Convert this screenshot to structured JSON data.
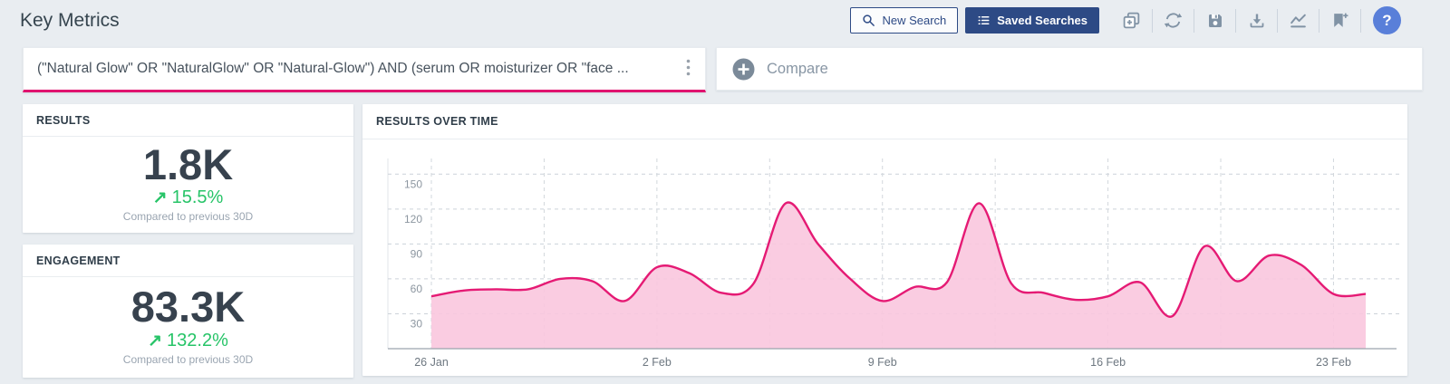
{
  "page": {
    "title": "Key Metrics"
  },
  "toolbar": {
    "new_search": {
      "label": "New Search"
    },
    "saved_searches": {
      "label": "Saved Searches"
    },
    "icon_buttons": [
      "add-to-dashboard",
      "refresh",
      "save",
      "download",
      "trend",
      "bookmark-add"
    ],
    "help": {
      "label": "?"
    }
  },
  "query_bar": {
    "query": "(\"Natural Glow\" OR \"NaturalGlow\" OR \"Natural-Glow\") AND (serum OR moisturizer OR \"face ...",
    "accent_color": "#e0136f"
  },
  "compare": {
    "label": "Compare"
  },
  "metrics": [
    {
      "title": "RESULTS",
      "value": "1.8K",
      "arrow": "↗",
      "change": "15.5%",
      "direction": "up",
      "change_color": "#27c468",
      "subtext": "Compared to previous 30D"
    },
    {
      "title": "ENGAGEMENT",
      "value": "83.3K",
      "arrow": "↗",
      "change": "132.2%",
      "direction": "up",
      "change_color": "#27c468",
      "subtext": "Compared to previous 30D"
    }
  ],
  "chart_data": {
    "type": "area",
    "title": "RESULTS OVER TIME",
    "x": [
      "26 Jan",
      "27 Jan",
      "28 Jan",
      "29 Jan",
      "30 Jan",
      "31 Jan",
      "1 Feb",
      "2 Feb",
      "3 Feb",
      "4 Feb",
      "5 Feb",
      "6 Feb",
      "7 Feb",
      "8 Feb",
      "9 Feb",
      "10 Feb",
      "11 Feb",
      "12 Feb",
      "13 Feb",
      "14 Feb",
      "15 Feb",
      "16 Feb",
      "17 Feb",
      "18 Feb",
      "19 Feb",
      "20 Feb",
      "21 Feb",
      "22 Feb",
      "23 Feb",
      "24 Feb"
    ],
    "values": [
      45,
      50,
      51,
      51,
      60,
      58,
      41,
      70,
      65,
      48,
      56,
      125,
      90,
      60,
      41,
      53,
      57,
      125,
      56,
      48,
      42,
      45,
      57,
      28,
      88,
      58,
      80,
      72,
      47,
      47
    ],
    "xlabel": "",
    "ylabel": "",
    "ylim": [
      0,
      165
    ],
    "y_ticks": [
      30,
      60,
      90,
      120,
      150
    ],
    "x_tick_labels": [
      "26 Jan",
      "2 Feb",
      "9 Feb",
      "16 Feb",
      "23 Feb"
    ],
    "x_tick_positions": [
      0,
      7,
      14,
      21,
      28
    ],
    "x_grid_step": 3.5,
    "grid": "dashed",
    "legend": "none",
    "line_color": "#e51a74",
    "fill_color": "#f9c6de",
    "axis_color": "#9ca4ad",
    "h_grid_color": "#ccd2d9",
    "v_grid_color": "#d2d7dc",
    "y_label_color": "#8c96a0",
    "x_label_color": "#6d7780"
  }
}
